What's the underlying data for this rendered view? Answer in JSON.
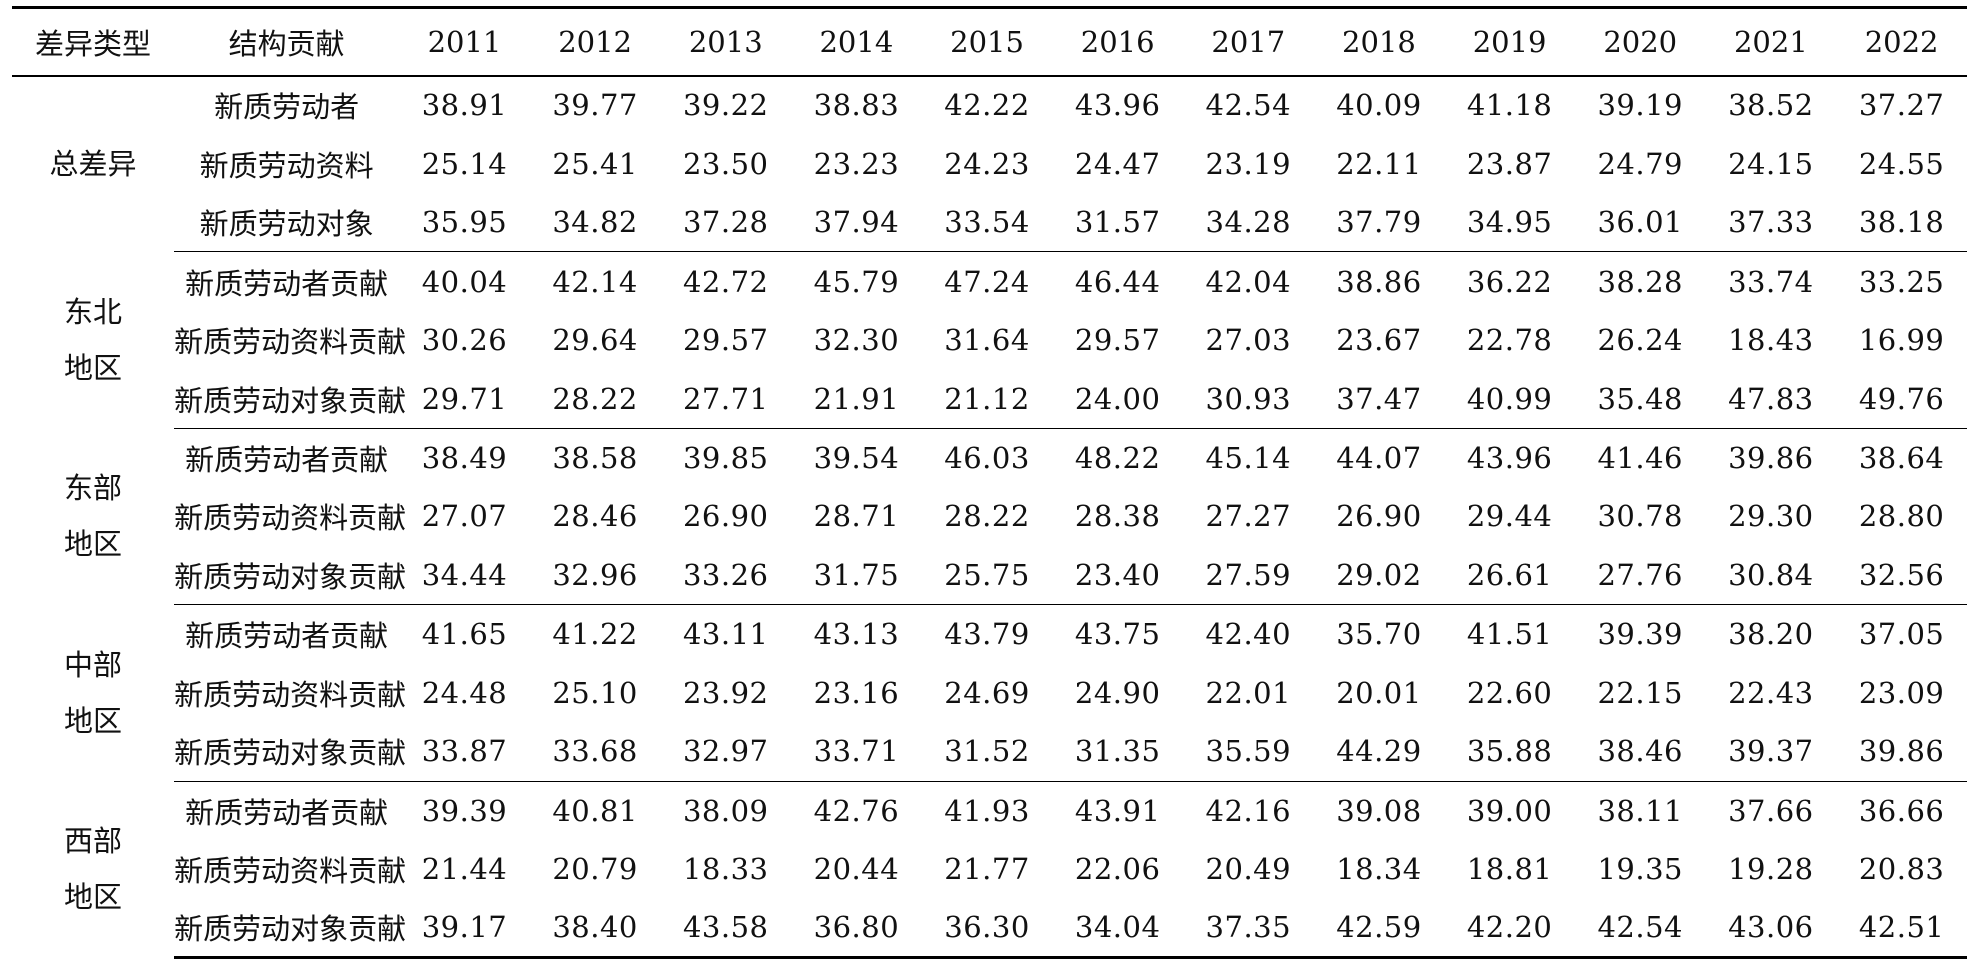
{
  "table": {
    "headers": [
      "差异类型",
      "结构贡献",
      "2011",
      "2012",
      "2013",
      "2014",
      "2015",
      "2016",
      "2017",
      "2018",
      "2019",
      "2020",
      "2021",
      "2022"
    ],
    "groups": [
      {
        "label_line1": "总差异",
        "label_line2": "",
        "rows": [
          {
            "name": "新质劳动者",
            "values": [
              "38.91",
              "39.77",
              "39.22",
              "38.83",
              "42.22",
              "43.96",
              "42.54",
              "40.09",
              "41.18",
              "39.19",
              "38.52",
              "37.27"
            ]
          },
          {
            "name": "新质劳动资料",
            "values": [
              "25.14",
              "25.41",
              "23.50",
              "23.23",
              "24.23",
              "24.47",
              "23.19",
              "22.11",
              "23.87",
              "24.79",
              "24.15",
              "24.55"
            ]
          },
          {
            "name": "新质劳动对象",
            "values": [
              "35.95",
              "34.82",
              "37.28",
              "37.94",
              "33.54",
              "31.57",
              "34.28",
              "37.79",
              "34.95",
              "36.01",
              "37.33",
              "38.18"
            ]
          }
        ]
      },
      {
        "label_line1": "东北",
        "label_line2": "地区",
        "rows": [
          {
            "name": "新质劳动者贡献",
            "values": [
              "40.04",
              "42.14",
              "42.72",
              "45.79",
              "47.24",
              "46.44",
              "42.04",
              "38.86",
              "36.22",
              "38.28",
              "33.74",
              "33.25"
            ]
          },
          {
            "name": "新质劳动资料贡献",
            "values": [
              "30.26",
              "29.64",
              "29.57",
              "32.30",
              "31.64",
              "29.57",
              "27.03",
              "23.67",
              "22.78",
              "26.24",
              "18.43",
              "16.99"
            ]
          },
          {
            "name": "新质劳动对象贡献",
            "values": [
              "29.71",
              "28.22",
              "27.71",
              "21.91",
              "21.12",
              "24.00",
              "30.93",
              "37.47",
              "40.99",
              "35.48",
              "47.83",
              "49.76"
            ]
          }
        ]
      },
      {
        "label_line1": "东部",
        "label_line2": "地区",
        "rows": [
          {
            "name": "新质劳动者贡献",
            "values": [
              "38.49",
              "38.58",
              "39.85",
              "39.54",
              "46.03",
              "48.22",
              "45.14",
              "44.07",
              "43.96",
              "41.46",
              "39.86",
              "38.64"
            ]
          },
          {
            "name": "新质劳动资料贡献",
            "values": [
              "27.07",
              "28.46",
              "26.90",
              "28.71",
              "28.22",
              "28.38",
              "27.27",
              "26.90",
              "29.44",
              "30.78",
              "29.30",
              "28.80"
            ]
          },
          {
            "name": "新质劳动对象贡献",
            "values": [
              "34.44",
              "32.96",
              "33.26",
              "31.75",
              "25.75",
              "23.40",
              "27.59",
              "29.02",
              "26.61",
              "27.76",
              "30.84",
              "32.56"
            ]
          }
        ]
      },
      {
        "label_line1": "中部",
        "label_line2": "地区",
        "rows": [
          {
            "name": "新质劳动者贡献",
            "values": [
              "41.65",
              "41.22",
              "43.11",
              "43.13",
              "43.79",
              "43.75",
              "42.40",
              "35.70",
              "41.51",
              "39.39",
              "38.20",
              "37.05"
            ]
          },
          {
            "name": "新质劳动资料贡献",
            "values": [
              "24.48",
              "25.10",
              "23.92",
              "23.16",
              "24.69",
              "24.90",
              "22.01",
              "20.01",
              "22.60",
              "22.15",
              "22.43",
              "23.09"
            ]
          },
          {
            "name": "新质劳动对象贡献",
            "values": [
              "33.87",
              "33.68",
              "32.97",
              "33.71",
              "31.52",
              "31.35",
              "35.59",
              "44.29",
              "35.88",
              "38.46",
              "39.37",
              "39.86"
            ]
          }
        ]
      },
      {
        "label_line1": "西部",
        "label_line2": "地区",
        "rows": [
          {
            "name": "新质劳动者贡献",
            "values": [
              "39.39",
              "40.81",
              "38.09",
              "42.76",
              "41.93",
              "43.91",
              "42.16",
              "39.08",
              "39.00",
              "38.11",
              "37.66",
              "36.66"
            ]
          },
          {
            "name": "新质劳动资料贡献",
            "values": [
              "21.44",
              "20.79",
              "18.33",
              "20.44",
              "21.77",
              "22.06",
              "20.49",
              "18.34",
              "18.81",
              "19.35",
              "19.28",
              "20.83"
            ]
          },
          {
            "name": "新质劳动对象贡献",
            "values": [
              "39.17",
              "38.40",
              "43.58",
              "36.80",
              "36.30",
              "34.04",
              "37.35",
              "42.59",
              "42.20",
              "42.54",
              "43.06",
              "42.51"
            ]
          }
        ]
      }
    ]
  }
}
